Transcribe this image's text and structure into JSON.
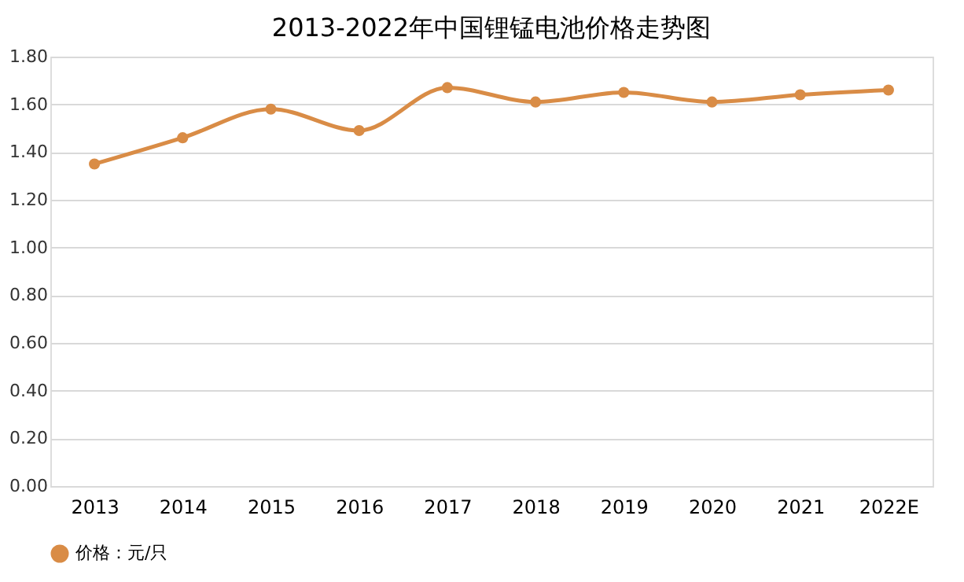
{
  "chart_data": {
    "type": "line",
    "title": "2013-2022年中国锂锰电池价格走势图",
    "categories": [
      "2013",
      "2014",
      "2015",
      "2016",
      "2017",
      "2018",
      "2019",
      "2020",
      "2021",
      "2022E"
    ],
    "series": [
      {
        "name": "价格：元/只",
        "color": "#d98c46",
        "values": [
          1.35,
          1.46,
          1.58,
          1.49,
          1.67,
          1.61,
          1.65,
          1.61,
          1.64,
          1.66
        ]
      }
    ],
    "ylim": [
      0,
      1.8
    ],
    "yticks": [
      {
        "value": 0,
        "label": "0.00"
      },
      {
        "value": 0.2,
        "label": "0.20"
      },
      {
        "value": 0.4,
        "label": "0.40"
      },
      {
        "value": 0.6,
        "label": "0.60"
      },
      {
        "value": 0.8,
        "label": "0.80"
      },
      {
        "value": 1.0,
        "label": "1.00"
      },
      {
        "value": 1.2,
        "label": "1.20"
      },
      {
        "value": 1.4,
        "label": "1.40"
      },
      {
        "value": 1.6,
        "label": "1.60"
      },
      {
        "value": 1.8,
        "label": "1.80"
      }
    ],
    "grid": "y",
    "legend": "bottom",
    "marker": "circle",
    "line_style": "solid"
  }
}
